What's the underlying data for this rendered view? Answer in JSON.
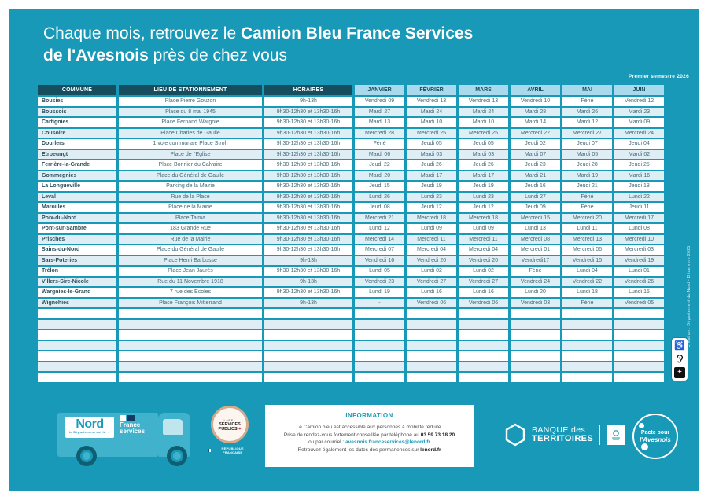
{
  "colors": {
    "teal_background": "#1899B8",
    "dark_header": "#174E5F",
    "light_header": "#A9D9EC",
    "row_alt": "#DFEEF5",
    "truck_blue": "#41B2CB",
    "accent_red": "#E1000F"
  },
  "header": {
    "title_pre": "Chaque mois, retrouvez le ",
    "title_bold1": "Camion Bleu France Services",
    "title_bold2": "de l'Avesnois",
    "title_post": " près de chez vous",
    "semester": "Premier semestre 2026"
  },
  "table": {
    "headers": [
      "COMMUNE",
      "LIEU DE STATIONNEMENT",
      "HORAIRES",
      "JANVIER",
      "FÉVRIER",
      "MARS",
      "AVRIL",
      "MAI",
      "JUIN"
    ],
    "rows": [
      [
        "Bousies",
        "Place Pierre Gouzon",
        "9h-13h",
        "Vendredi 09",
        "Vendredi 13",
        "Vendredi 13",
        "Vendredi 10",
        "Férié",
        "Vendredi 12"
      ],
      [
        "Boussois",
        "Place du 8 mai 1945",
        "9h30-12h30 et 13h30-16h",
        "Mardi 27",
        "Mardi 24",
        "Mardi 24",
        "Mardi 28",
        "Mardi 26",
        "Mardi 23"
      ],
      [
        "Cartignies",
        "Place Fernand Wargnie",
        "9h30-12h30 et 13h30-16h",
        "Mardi 13",
        "Mardi 10",
        "Mardi 10",
        "Mardi 14",
        "Mardi 12",
        "Mardi 09"
      ],
      [
        "Cousolre",
        "Place Charles de Gaulle",
        "9h30-12h30 et 13h30-16h",
        "Mercredi 28",
        "Mercredi 25",
        "Mercredi 25",
        "Mercredi 22",
        "Mercredi 27",
        "Mercredi 24"
      ],
      [
        "Dourlers",
        "1 voie communale Place Stroh",
        "9h30-12h30 et 13h30-16h",
        "Férié",
        "Jeudi 05",
        "Jeudi 05",
        "Jeudi 02",
        "Jeudi 07",
        "Jeudi 04"
      ],
      [
        "Etroeungt",
        "Place de l'Eglise",
        "9h30-12h30 et 13h30-16h",
        "Mardi 06",
        "Mardi 03",
        "Mardi 03",
        "Mardi 07",
        "Mardi 05",
        "Mardi 02"
      ],
      [
        "Ferrière-la-Grande",
        "Place Bonnier du Calvaire",
        "9h30-12h30 et 13h30-16h",
        "Jeudi 22",
        "Jeudi 26",
        "Jeudi 26",
        "Jeudi 23",
        "Jeudi 28",
        "Jeudi 25"
      ],
      [
        "Gommegnies",
        "Place du Général de Gaulle",
        "9h30-12h30 et 13h30-16h",
        "Mardi 20",
        "Mardi 17",
        "Mardi 17",
        "Mardi 21",
        "Mardi 19",
        "Mardi 16"
      ],
      [
        "La Longueville",
        "Parking de la Mairie",
        "9h30-12h30 et 13h30-16h",
        "Jeudi 15",
        "Jeudi 19",
        "Jeudi 19",
        "Jeudi 16",
        "Jeudi 21",
        "Jeudi 18"
      ],
      [
        "Leval",
        "Rue de la Place",
        "9h30-12h30 et 13h30-16h",
        "Lundi 26",
        "Lundi 23",
        "Lundi 23",
        "Lundi 27",
        "Férié",
        "Lundi 22"
      ],
      [
        "Maroilles",
        "Place de la Mairie",
        "9h30-12h30 et 13h30-16h",
        "Jeudi 08",
        "Jeudi 12",
        "Jeudi 12",
        "Jeudi 09",
        "Férié",
        "Jeudi 11"
      ],
      [
        "Poix-du-Nord",
        "Place Talma",
        "9h30-12h30 et 13h30-16h",
        "Mercredi 21",
        "Mercredi 18",
        "Mercredi 18",
        "Mercredi 15",
        "Mercredi 20",
        "Mercredi 17"
      ],
      [
        "Pont-sur-Sambre",
        "183 Grande Rue",
        "9h30-12h30 et 13h30-16h",
        "Lundi 12",
        "Lundi 09",
        "Lundi 09",
        "Lundi 13",
        "Lundi 11",
        "Lundi 08"
      ],
      [
        "Prisches",
        "Rue de la Mairie",
        "9h30-12h30 et 13h30-16h",
        "Mercredi 14",
        "Mercredi 11",
        "Mercredi 11",
        "Mercredi 08",
        "Mercredi 13",
        "Mercredi 10"
      ],
      [
        "Sains-du-Nord",
        "Place du Général de Gaulle",
        "9h30-12h30 et 13h30-16h",
        "Mercredi 07",
        "Mercredi 04",
        "Mercredi 04",
        "Mercredi 01",
        "Mercredi 06",
        "Mercredi 03"
      ],
      [
        "Sars-Poteries",
        "Place Henri Barbusse",
        "9h-13h",
        "Vendredi 16",
        "Vendredi 20",
        "Vendredi 20",
        "Vendredi17",
        "Vendredi 15",
        "Vendredi 19"
      ],
      [
        "Trélon",
        "Place Jean Jaurès",
        "9h30-12h30 et 13h30-16h",
        "Lundi 05",
        "Lundi 02",
        "Lundi 02",
        "Férié",
        "Lundi 04",
        "Lundi 01"
      ],
      [
        "Villers-Sire-Nicole",
        "Rue du 11 Novembre 1918",
        "9h-13h",
        "Vendredi 23",
        "Vendredi 27",
        "Vendredi 27",
        "Vendredi 24",
        "Vendredi 22",
        "Vendredi 26"
      ],
      [
        "Wargnies-le-Grand",
        "7 rue des Ecoles",
        "9h30-12h30 et 13h30-16h",
        "Lundi 19",
        "Lundi 16",
        "Lundi 16",
        "Lundi 20",
        "Lundi 18",
        "Lundi 15"
      ],
      [
        "Wignehies",
        "Place François Mitterrand",
        "9h-13h",
        "-",
        "Vendredi 06",
        "Vendredi 06",
        "Vendredi 03",
        "Férié",
        "Vendredi 05"
      ]
    ],
    "empty_row_count": 7
  },
  "footer": {
    "truck": {
      "nord_logo": "Nord",
      "nord_tagline": "le Département est là →",
      "fs_line1": "France",
      "fs_line2": "services"
    },
    "label_badge": {
      "line1": "LABEL",
      "line2": "SERVICES",
      "line3": "PUBLICS",
      "plus": "+",
      "republique": "RÉPUBLIQUE FRANÇAISE"
    },
    "info": {
      "title": "INFORMATION",
      "line1": "Le Camion bleu est accessible aux personnes à mobilité réduite.",
      "line2_text": "Prise de rendez-vous fortement conseillée par téléphone au ",
      "line2_phone": "03 59 73 18 20",
      "line3_text": "ou par courriel : ",
      "line3_email": "avesnois.franceservices@lenord.fr",
      "line4_text": "Retrouvez également les dates des permanences sur ",
      "line4_site": "lenord.fr"
    },
    "banque": {
      "line1": "BANQUE des",
      "line2": "TERRITOIRES"
    },
    "pacte": {
      "line1": "Pacte pour",
      "line2": "l'Avesnois"
    },
    "credit_vertical": "Création : Département du Nord - Décembre 2025"
  }
}
